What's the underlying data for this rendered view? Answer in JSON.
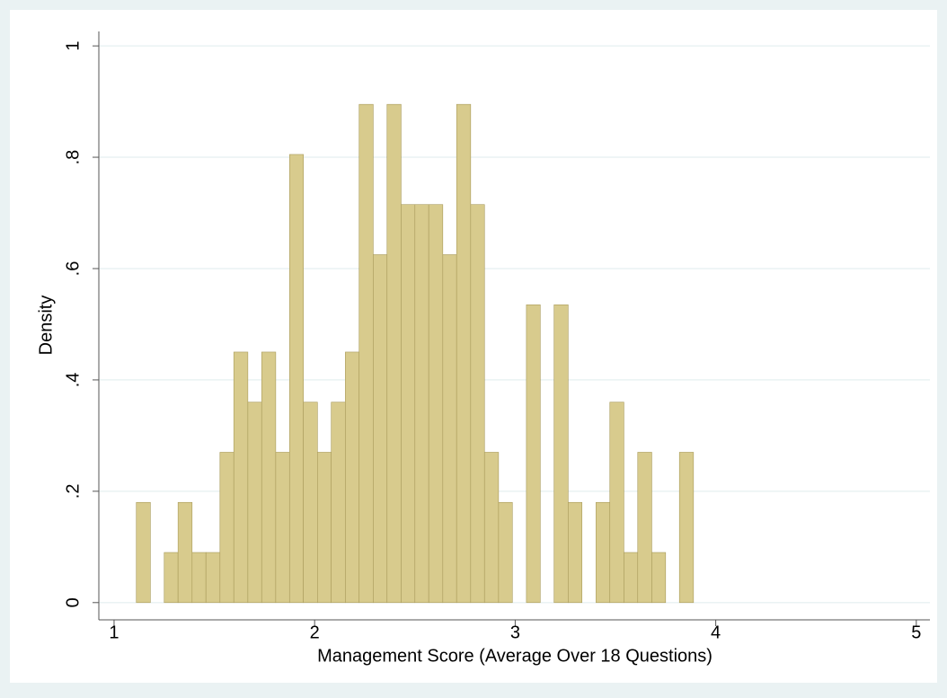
{
  "chart_data": {
    "type": "histogram",
    "xlabel": "Management Score (Average Over 18 Questions)",
    "ylabel": "Density",
    "bins": [
      1.111,
      1.181,
      1.25,
      1.319,
      1.389,
      1.458,
      1.528,
      1.597,
      1.667,
      1.736,
      1.806,
      1.875,
      1.944,
      2.014,
      2.083,
      2.153,
      2.222,
      2.292,
      2.361,
      2.431,
      2.5,
      2.569,
      2.639,
      2.708,
      2.778,
      2.847,
      2.917,
      2.986,
      3.056,
      3.125,
      3.194,
      3.264,
      3.333,
      3.403,
      3.472,
      3.542,
      3.611,
      3.681,
      3.75,
      3.819,
      3.889
    ],
    "values": [
      0.18,
      0,
      0.09,
      0.18,
      0.09,
      0.09,
      0.27,
      0.45,
      0.36,
      0.45,
      0.27,
      0.805,
      0.36,
      0.27,
      0.36,
      0.45,
      0.895,
      0.625,
      0.895,
      0.715,
      0.715,
      0.715,
      0.625,
      0.895,
      0.715,
      0.27,
      0.18,
      0,
      0.535,
      0,
      0.535,
      0.18,
      0,
      0.18,
      0.36,
      0.09,
      0.27,
      0.09,
      0,
      0.27
    ],
    "color": "#d8cb8d",
    "edge_color": "#a89a5a",
    "xlim": [
      0.924,
      5.068
    ],
    "xticks": [
      1,
      2,
      3,
      4,
      5
    ],
    "ylim": [
      -0.031,
      1.026
    ],
    "yticks": [
      0,
      {
        "value": 0.2,
        "label": ".2"
      },
      {
        "value": 0.4,
        "label": ".4"
      },
      {
        "value": 0.6,
        "label": ".6"
      },
      {
        "value": 0.8,
        "label": ".8"
      },
      1
    ],
    "grid": true
  }
}
